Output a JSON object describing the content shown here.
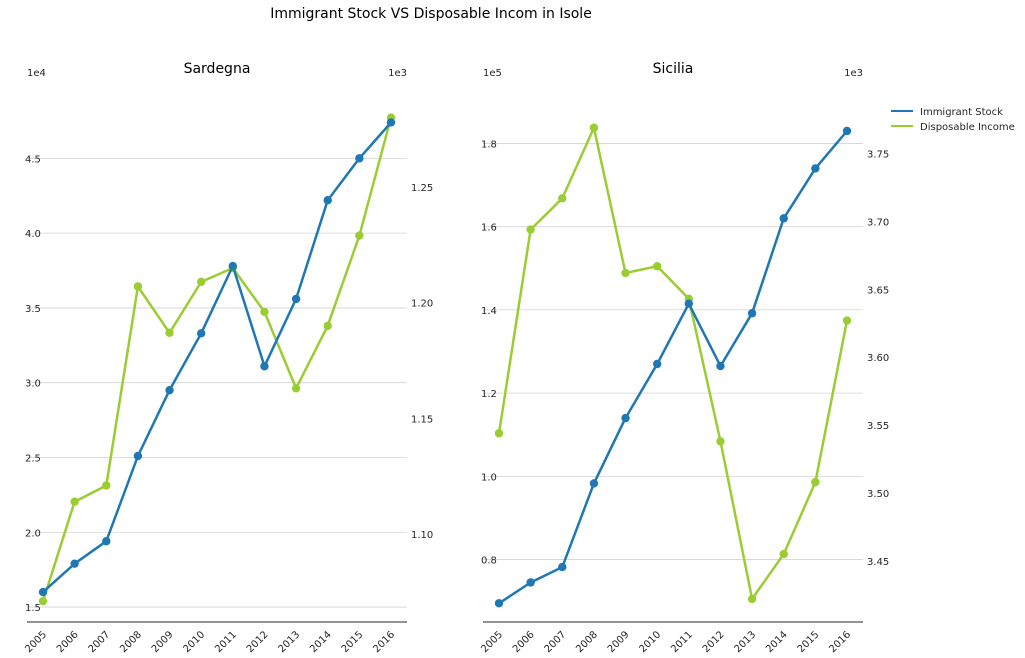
{
  "figure": {
    "title": "Immigrant Stock VS Disposable Incom in Isole"
  },
  "legend": {
    "placement": "right",
    "entries": [
      {
        "label": "Immigrant Stock",
        "color": "#1f77b4"
      },
      {
        "label": "Disposable Income",
        "color": "#9acd32"
      }
    ]
  },
  "chart_data": [
    {
      "type": "line",
      "title": "Sardegna",
      "categories": [
        "2005",
        "2006",
        "2007",
        "2008",
        "2009",
        "2010",
        "2011",
        "2012",
        "2013",
        "2014",
        "2015",
        "2016"
      ],
      "series": [
        {
          "name": "Immigrant Stock",
          "axis": "left",
          "color": "#1f77b4",
          "values": [
            16000,
            17900,
            19400,
            25100,
            29500,
            33300,
            37800,
            31100,
            35600,
            42200,
            45000,
            47400
          ]
        },
        {
          "name": "Disposable Income",
          "axis": "right",
          "color": "#9acd32",
          "values": [
            1071,
            1114,
            1121,
            1207,
            1187,
            1209,
            1215,
            1196,
            1163,
            1190,
            1229,
            1280
          ]
        }
      ],
      "yleft": {
        "multiplier": "1e4",
        "ylim": [
          14000,
          48500
        ],
        "ticks": [
          {
            "v": 15000,
            "label": "1.5"
          },
          {
            "v": 20000,
            "label": "2.0"
          },
          {
            "v": 25000,
            "label": "2.5"
          },
          {
            "v": 30000,
            "label": "3.0"
          },
          {
            "v": 35000,
            "label": "3.5"
          },
          {
            "v": 40000,
            "label": "4.0"
          },
          {
            "v": 45000,
            "label": "4.5"
          }
        ]
      },
      "yright": {
        "multiplier": "1e3",
        "ylim": [
          1062,
          1285
        ],
        "ticks": [
          {
            "v": 1100,
            "label": "1.10"
          },
          {
            "v": 1150,
            "label": "1.15"
          },
          {
            "v": 1200,
            "label": "1.20"
          },
          {
            "v": 1250,
            "label": "1.25"
          }
        ]
      },
      "grid": true
    },
    {
      "type": "line",
      "title": "Sicilia",
      "categories": [
        "2005",
        "2006",
        "2007",
        "2008",
        "2009",
        "2010",
        "2011",
        "2012",
        "2013",
        "2014",
        "2015",
        "2016"
      ],
      "series": [
        {
          "name": "Immigrant Stock",
          "axis": "left",
          "color": "#1f77b4",
          "values": [
            69500,
            74500,
            78200,
            98300,
            114000,
            127000,
            141500,
            126500,
            139200,
            162000,
            174000,
            183000
          ]
        },
        {
          "name": "Disposable Income",
          "axis": "right",
          "color": "#9acd32",
          "values": [
            3544,
            3694,
            3717,
            3769,
            3662,
            3667,
            3643,
            3538,
            3422,
            3455,
            3508,
            3627
          ]
        }
      ],
      "yleft": {
        "multiplier": "1e5",
        "ylim": [
          65000,
          189000
        ],
        "ticks": [
          {
            "v": 80000,
            "label": "0.8"
          },
          {
            "v": 100000,
            "label": "1.0"
          },
          {
            "v": 120000,
            "label": "1.2"
          },
          {
            "v": 140000,
            "label": "1.4"
          },
          {
            "v": 160000,
            "label": "1.6"
          },
          {
            "v": 180000,
            "label": "1.8"
          }
        ]
      },
      "yright": {
        "multiplier": "1e3",
        "ylim": [
          3405,
          3785
        ],
        "ticks": [
          {
            "v": 3450,
            "label": "3.45"
          },
          {
            "v": 3500,
            "label": "3.50"
          },
          {
            "v": 3550,
            "label": "3.55"
          },
          {
            "v": 3600,
            "label": "3.60"
          },
          {
            "v": 3650,
            "label": "3.65"
          },
          {
            "v": 3700,
            "label": "3.70"
          },
          {
            "v": 3750,
            "label": "3.75"
          }
        ]
      },
      "grid": true
    }
  ]
}
